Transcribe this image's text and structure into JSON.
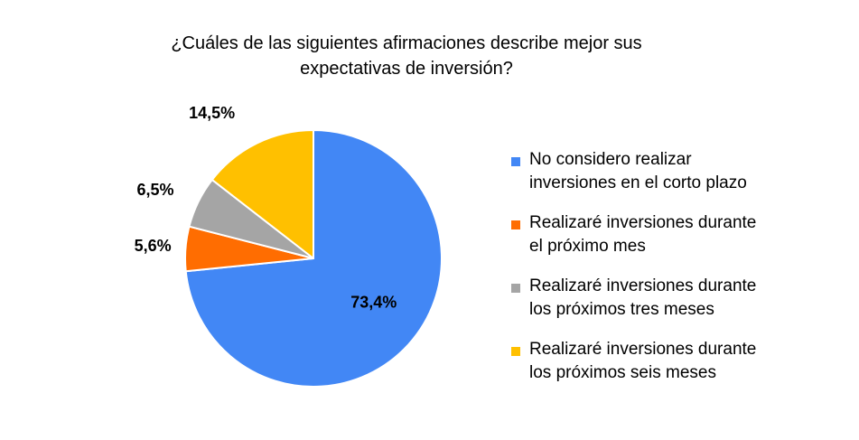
{
  "chart_data": {
    "type": "pie",
    "title": "¿Cuáles de las siguientes afirmaciones describe mejor sus expectativas de inversión?",
    "title_lines": [
      "¿Cuáles de las siguientes afirmaciones describe mejor sus",
      "expectativas de inversión?"
    ],
    "slices": [
      {
        "label": "No considero realizar inversiones en el corto plazo",
        "label_lines": [
          "No considero realizar",
          "inversiones en el corto plazo"
        ],
        "value": 73.4,
        "data_label": "73,4%",
        "color": "#4287f5"
      },
      {
        "label": "Realizaré inversiones durante el próximo mes",
        "label_lines": [
          "Realizaré inversiones durante",
          "el próximo mes"
        ],
        "value": 5.6,
        "data_label": "5,6%",
        "color": "#ff6d01"
      },
      {
        "label": "Realizaré inversiones durante los próximos tres meses",
        "label_lines": [
          "Realizaré inversiones durante",
          "los próximos tres meses"
        ],
        "value": 6.5,
        "data_label": "6,5%",
        "color": "#a5a5a5"
      },
      {
        "label": "Realizaré inversiones durante los próximos seis meses",
        "label_lines": [
          "Realizaré inversiones durante",
          "los próximos seis meses"
        ],
        "value": 14.5,
        "data_label": "14,5%",
        "color": "#ffc000"
      }
    ],
    "legend_position": "right",
    "start_angle": "top, clockwise"
  }
}
